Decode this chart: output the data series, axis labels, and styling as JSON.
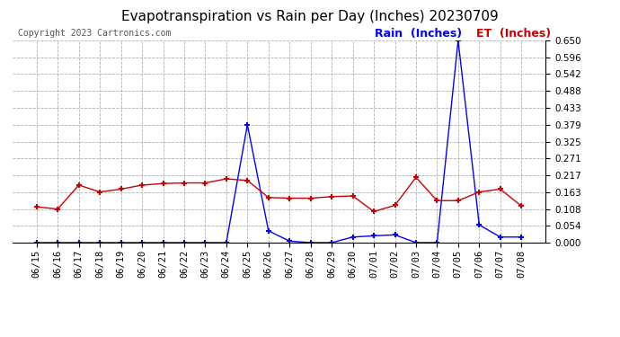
{
  "title": "Evapotranspiration vs Rain per Day (Inches) 20230709",
  "copyright": "Copyright 2023 Cartronics.com",
  "legend_rain": "Rain  (Inches)",
  "legend_et": "ET  (Inches)",
  "x_labels": [
    "06/15",
    "06/16",
    "06/17",
    "06/18",
    "06/19",
    "06/20",
    "06/21",
    "06/22",
    "06/23",
    "06/24",
    "06/25",
    "06/26",
    "06/27",
    "06/28",
    "06/29",
    "06/30",
    "07/01",
    "07/02",
    "07/03",
    "07/04",
    "07/05",
    "07/06",
    "07/07",
    "07/08"
  ],
  "rain_values": [
    0.0,
    0.0,
    0.0,
    0.0,
    0.0,
    0.0,
    0.0,
    0.0,
    0.0,
    0.0,
    0.379,
    0.038,
    0.005,
    0.0,
    0.0,
    0.018,
    0.022,
    0.025,
    0.0,
    0.0,
    0.65,
    0.057,
    0.018,
    0.018
  ],
  "et_values": [
    0.115,
    0.108,
    0.185,
    0.163,
    0.172,
    0.185,
    0.19,
    0.192,
    0.192,
    0.205,
    0.2,
    0.145,
    0.143,
    0.143,
    0.148,
    0.15,
    0.1,
    0.12,
    0.21,
    0.135,
    0.135,
    0.163,
    0.172,
    0.118
  ],
  "rain_color": "#0000ff",
  "et_color": "#cc0000",
  "ylim": [
    0.0,
    0.65
  ],
  "yticks": [
    0.0,
    0.054,
    0.108,
    0.163,
    0.217,
    0.271,
    0.325,
    0.379,
    0.433,
    0.488,
    0.542,
    0.596,
    0.65
  ],
  "bg_color": "#ffffff",
  "grid_color": "#b0b0b0",
  "title_fontsize": 11,
  "copyright_fontsize": 7,
  "legend_fontsize": 9,
  "tick_fontsize": 7.5
}
